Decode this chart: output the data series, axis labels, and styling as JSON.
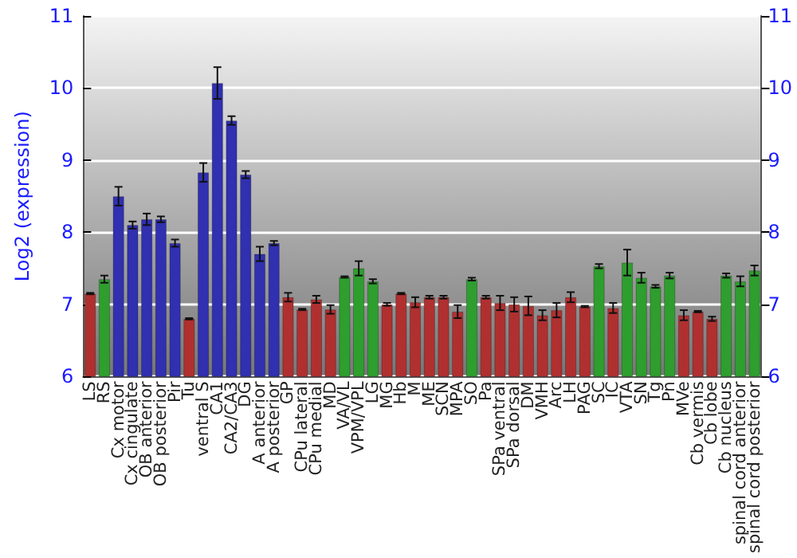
{
  "chart_data": {
    "type": "bar",
    "ylabel": "Log2 (expression)",
    "categories": [
      "LS",
      "RS",
      "Cx motor",
      "Cx cingulate",
      "OB anterior",
      "OB posterior",
      "Pir",
      "Tu",
      "ventral S",
      "CA1",
      "CA2/CA3",
      "DG",
      "A anterior",
      "A posterior",
      "GP",
      "CPu lateral",
      "CPu medial",
      "MD",
      "VA/VL",
      "VPM/VPL",
      "LG",
      "MG",
      "Hb",
      "M",
      "ME",
      "SCN",
      "MPA",
      "SO",
      "Pa",
      "SPa ventral",
      "SPa dorsal",
      "DM",
      "VMH",
      "Arc",
      "LH",
      "PAG",
      "SC",
      "IC",
      "VTA",
      "SN",
      "Tg",
      "Pn",
      "MVe",
      "Cb vermis",
      "Cb lobe",
      "Cb nucleus",
      "spinal cord anterior",
      "spinal cord posterior"
    ],
    "values": [
      7.15,
      7.35,
      8.5,
      8.1,
      8.18,
      8.18,
      7.85,
      6.8,
      8.83,
      10.07,
      9.55,
      8.8,
      7.7,
      7.85,
      7.1,
      6.93,
      7.07,
      6.93,
      7.38,
      7.5,
      7.32,
      7.0,
      7.15,
      7.03,
      7.1,
      7.1,
      6.9,
      7.35,
      7.1,
      7.02,
      7.0,
      6.98,
      6.85,
      6.92,
      7.1,
      6.97,
      7.53,
      6.95,
      7.58,
      7.37,
      7.25,
      7.4,
      6.85,
      6.9,
      6.8,
      7.4,
      7.32,
      7.47
    ],
    "errors": [
      0.01,
      0.05,
      0.13,
      0.05,
      0.08,
      0.04,
      0.05,
      0.01,
      0.13,
      0.22,
      0.06,
      0.05,
      0.1,
      0.03,
      0.06,
      0.01,
      0.05,
      0.06,
      0.01,
      0.1,
      0.03,
      0.02,
      0.01,
      0.07,
      0.02,
      0.02,
      0.09,
      0.02,
      0.02,
      0.1,
      0.1,
      0.13,
      0.07,
      0.1,
      0.07,
      0.01,
      0.03,
      0.07,
      0.18,
      0.07,
      0.02,
      0.04,
      0.07,
      0.01,
      0.03,
      0.03,
      0.07,
      0.07
    ],
    "colors": [
      "#b03030",
      "#2e9e2e",
      "#3030b0",
      "#3030b0",
      "#3030b0",
      "#3030b0",
      "#3030b0",
      "#b03030",
      "#3030b0",
      "#3030b0",
      "#3030b0",
      "#3030b0",
      "#3030b0",
      "#3030b0",
      "#b03030",
      "#b03030",
      "#b03030",
      "#b03030",
      "#2e9e2e",
      "#2e9e2e",
      "#2e9e2e",
      "#b03030",
      "#b03030",
      "#b03030",
      "#b03030",
      "#b03030",
      "#b03030",
      "#2e9e2e",
      "#b03030",
      "#b03030",
      "#b03030",
      "#b03030",
      "#b03030",
      "#b03030",
      "#b03030",
      "#b03030",
      "#2e9e2e",
      "#b03030",
      "#2e9e2e",
      "#2e9e2e",
      "#2e9e2e",
      "#2e9e2e",
      "#b03030",
      "#b03030",
      "#b03030",
      "#2e9e2e",
      "#2e9e2e",
      "#2e9e2e"
    ],
    "ylim": [
      6,
      11
    ],
    "yticks": [
      6,
      7,
      8,
      9,
      10,
      11
    ],
    "y2lim": [
      6,
      11
    ],
    "y2ticks": [
      6,
      7,
      8,
      9,
      10,
      11
    ],
    "grid": "y"
  }
}
